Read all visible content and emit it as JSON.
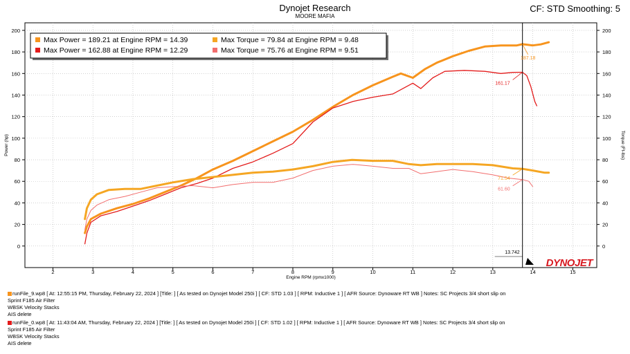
{
  "header": {
    "title": "Dynojet Research",
    "subtitle": "MOORE MAFIA",
    "cf_smoothing": "CF: STD Smoothing: 5"
  },
  "colors": {
    "run1_power": "#f7941d",
    "run1_torque": "#f5a623",
    "run2_power": "#e31b1b",
    "run2_torque": "#f26d6d",
    "cursor": "#000000"
  },
  "chart_data": {
    "type": "line",
    "xlabel": "Engine RPM (rpmx1000)",
    "ylabel_left": "Power (hp)",
    "ylabel_right": "Torque (Ft-lbs)",
    "xlim": [
      1.3,
      15.6
    ],
    "ylim": [
      -20,
      207
    ],
    "x_ticks": [
      2,
      3,
      4,
      5,
      6,
      7,
      8,
      9,
      10,
      11,
      12,
      13,
      14,
      15
    ],
    "y_ticks": [
      0,
      20,
      40,
      60,
      80,
      100,
      120,
      140,
      160,
      180,
      200
    ],
    "grid": true,
    "legend_position": "top-left",
    "legend": [
      "Max Power = 189.21 at Engine RPM = 14.39",
      "Max Torque = 79.84 at Engine RPM = 9.48",
      "Max Power = 162.88 at Engine RPM = 12.29",
      "Max Torque = 75.76 at Engine RPM = 9.51"
    ],
    "series": [
      {
        "key": "run1_power",
        "x": [
          2.8,
          2.85,
          2.95,
          3.2,
          3.6,
          4.0,
          4.4,
          4.8,
          5.2,
          5.6,
          6.0,
          6.5,
          7.0,
          7.5,
          8.0,
          8.5,
          9.0,
          9.5,
          10.0,
          10.5,
          10.7,
          11.0,
          11.3,
          11.6,
          12.0,
          12.4,
          12.8,
          13.2,
          13.6,
          13.74,
          14.0,
          14.2,
          14.4
        ],
        "y": [
          12,
          18,
          25,
          30,
          35,
          39,
          44,
          50,
          56,
          63,
          71,
          79,
          88,
          97,
          106,
          117,
          129,
          140,
          149,
          157,
          160,
          156,
          164,
          170,
          176,
          181,
          185,
          186,
          186,
          187.18,
          186,
          187,
          189
        ]
      },
      {
        "key": "run2_power",
        "x": [
          2.8,
          2.85,
          2.95,
          3.2,
          3.6,
          4.0,
          4.4,
          4.8,
          5.2,
          5.6,
          6.0,
          6.5,
          7.0,
          7.5,
          8.0,
          8.5,
          9.0,
          9.5,
          10.0,
          10.5,
          10.8,
          11.0,
          11.2,
          11.5,
          11.8,
          12.29,
          12.8,
          13.2,
          13.5,
          13.74,
          13.85,
          13.95,
          14.05,
          14.1
        ],
        "y": [
          2,
          12,
          22,
          28,
          32,
          37,
          42,
          48,
          54,
          58,
          63,
          72,
          78,
          86,
          95,
          115,
          128,
          134,
          138,
          141,
          147,
          151,
          146,
          156,
          162,
          162.88,
          162,
          160,
          161,
          161.17,
          158,
          148,
          134,
          130
        ]
      },
      {
        "key": "run1_torque",
        "x": [
          2.8,
          2.85,
          2.95,
          3.1,
          3.4,
          3.8,
          4.2,
          4.6,
          5.0,
          5.5,
          6.0,
          6.5,
          7.0,
          7.5,
          8.0,
          8.5,
          9.0,
          9.48,
          10.0,
          10.5,
          10.9,
          11.2,
          11.6,
          12.0,
          12.5,
          13.0,
          13.5,
          13.74,
          14.0,
          14.3,
          14.4
        ],
        "y": [
          25,
          35,
          43,
          48,
          52,
          53,
          53,
          56,
          59,
          62,
          64,
          66,
          68,
          69,
          71,
          74,
          78,
          79.84,
          79,
          79,
          76,
          75,
          76,
          76,
          76,
          75,
          72,
          71.54,
          70,
          68,
          68
        ]
      },
      {
        "key": "run2_torque",
        "x": [
          2.8,
          2.85,
          2.95,
          3.1,
          3.4,
          3.8,
          4.2,
          4.6,
          5.0,
          5.5,
          6.0,
          6.5,
          7.0,
          7.5,
          8.0,
          8.5,
          9.0,
          9.51,
          10.0,
          10.5,
          10.9,
          11.2,
          11.6,
          12.0,
          12.5,
          13.0,
          13.4,
          13.74,
          13.9,
          14.0
        ],
        "y": [
          15,
          25,
          33,
          38,
          43,
          46,
          50,
          54,
          55,
          56,
          54,
          57,
          59,
          59,
          63,
          70,
          74,
          75.76,
          74,
          72,
          72,
          67,
          69,
          71,
          69,
          66,
          63,
          61.6,
          60,
          55
        ]
      }
    ],
    "cursor": {
      "x": 13.742,
      "label": "13.742",
      "readouts": [
        "187.18",
        "161.17",
        "71.54",
        "61.60"
      ]
    },
    "logo": "DYNOJET"
  },
  "runs": [
    {
      "file": "runFile_9.wp8",
      "line1": "runFile_9.wp8 [ At: 12:55:15 PM, Thursday, February 22, 2024 ] [Title: ]  [ As tested on Dynojet Model 250i ] [ CF: STD 1.03 ] [ RPM: Inductive 1 ] [ AFR Source: Dynoware RT WB ] Notes: SC Projects 3/4 short slip on",
      "line2": "Sprint F185 Air Filter",
      "line3": "WBSK Velocity Stacks",
      "line4": "AIS delete"
    },
    {
      "file": "runFile_0.wp8",
      "line1": "runFile_0.wp8 [ At: 11:43:04 AM, Thursday, February 22, 2024 ] [Title: ]  [ As tested on Dynojet Model 250i ] [ CF: STD 1.02 ] [ RPM: Inductive 1 ] [ AFR Source: Dynoware RT WB ] Notes: SC Projects 3/4 short slip on",
      "line2": "Sprint F185 Air Filter",
      "line3": "WBSK Velocity Stacks",
      "line4": "AIS delete"
    }
  ]
}
